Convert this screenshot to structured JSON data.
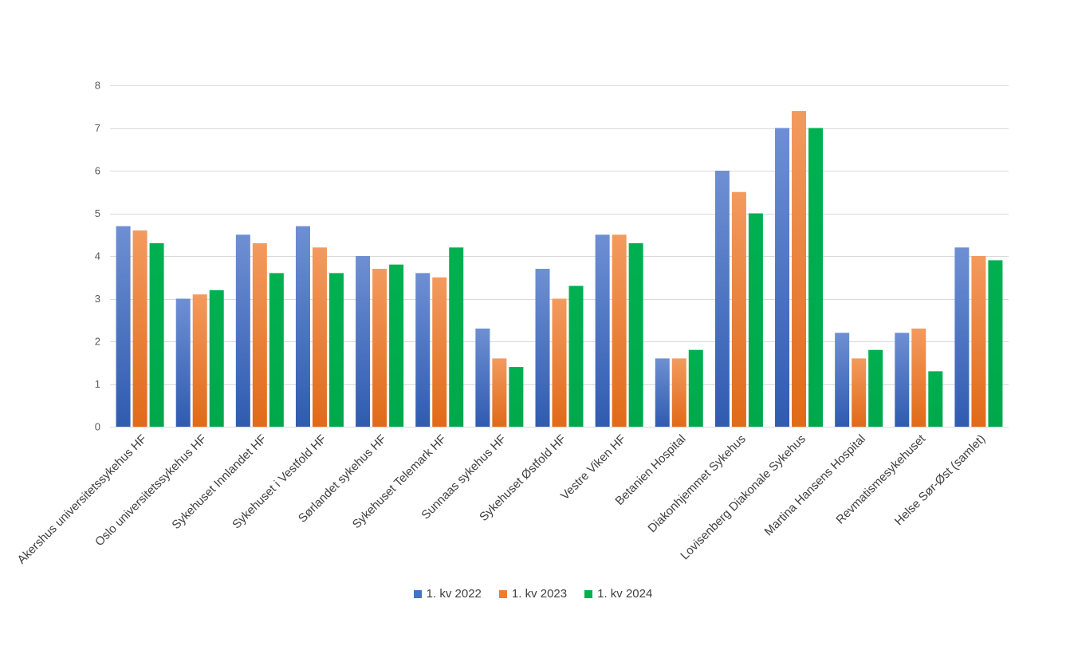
{
  "chart_data": {
    "type": "bar",
    "title": "",
    "xlabel": "",
    "ylabel": "",
    "ylim": [
      0,
      8
    ],
    "yticks": [
      0,
      1,
      2,
      3,
      4,
      5,
      6,
      7,
      8
    ],
    "grid": true,
    "legend_position": "bottom",
    "categories": [
      "Akershus universitetssykehus HF",
      "Oslo universitetssykehus HF",
      "Sykehuset Innlandet HF",
      "Sykehuset i Vestfold HF",
      "Sørlandet sykehus HF",
      "Sykehuset Telemark HF",
      "Sunnaas sykehus HF",
      "Sykehuset Østfold HF",
      "Vestre Viken HF",
      "Betanien Hospital",
      "Diakonhjemmet Sykehus",
      "Lovisenberg Diakonale Sykehus",
      "Martina Hansens Hospital",
      "Revmatismesykehuset",
      "Helse Sør-Øst (samlet)"
    ],
    "series": [
      {
        "name": "1. kv 2022",
        "color": "#4472C4",
        "values": [
          4.7,
          3.0,
          4.5,
          4.7,
          4.0,
          3.6,
          2.3,
          3.7,
          4.5,
          1.6,
          6.0,
          7.0,
          2.2,
          2.2,
          4.2
        ]
      },
      {
        "name": "1. kv 2023",
        "color": "#ED7D31",
        "values": [
          4.6,
          3.1,
          4.3,
          4.2,
          3.7,
          3.5,
          1.6,
          3.0,
          4.5,
          1.6,
          5.5,
          7.4,
          1.6,
          2.3,
          4.0
        ]
      },
      {
        "name": "1. kv 2024",
        "color": "#00B050",
        "values": [
          4.3,
          3.2,
          3.6,
          3.6,
          3.8,
          4.2,
          1.4,
          3.3,
          4.3,
          1.8,
          5.0,
          7.0,
          1.8,
          1.3,
          3.9
        ]
      }
    ]
  }
}
